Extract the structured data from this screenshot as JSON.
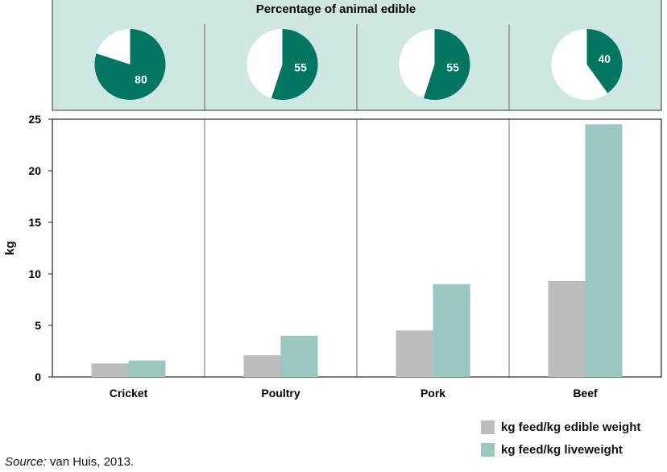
{
  "colors": {
    "pie_panel_bg": "#cfe7e2",
    "pie_fill": "#007560",
    "edible_bar": "#bcbdbf",
    "liveweight_bar": "#9ac8c0",
    "grid_line": "#444444"
  },
  "pie_panel": {
    "title": "Percentage of animal edible"
  },
  "chart_data": [
    {
      "type": "pie",
      "title": "Percentage of animal edible",
      "categories": [
        "Cricket",
        "Poultry",
        "Pork",
        "Beef"
      ],
      "values": [
        80,
        55,
        55,
        40
      ],
      "value_labels": [
        "80",
        "55",
        "55",
        "40"
      ]
    },
    {
      "type": "bar",
      "categories": [
        "Cricket",
        "Poultry",
        "Pork",
        "Beef"
      ],
      "series": [
        {
          "name": "kg feed/kg edible weight",
          "values": [
            1.3,
            2.1,
            4.5,
            9.3
          ]
        },
        {
          "name": "kg feed/kg liveweight",
          "values": [
            1.6,
            4.0,
            9.0,
            24.5
          ]
        }
      ],
      "ylabel": "kg",
      "xlabel": "",
      "ylim": [
        0,
        25
      ],
      "yticks": [
        "0",
        "5",
        "10",
        "15",
        "20",
        "25"
      ],
      "grid": "vertical separators between categories",
      "legend_position": "bottom-right"
    }
  ],
  "source": {
    "label": "Source:",
    "text": " van Huis, 2013."
  }
}
